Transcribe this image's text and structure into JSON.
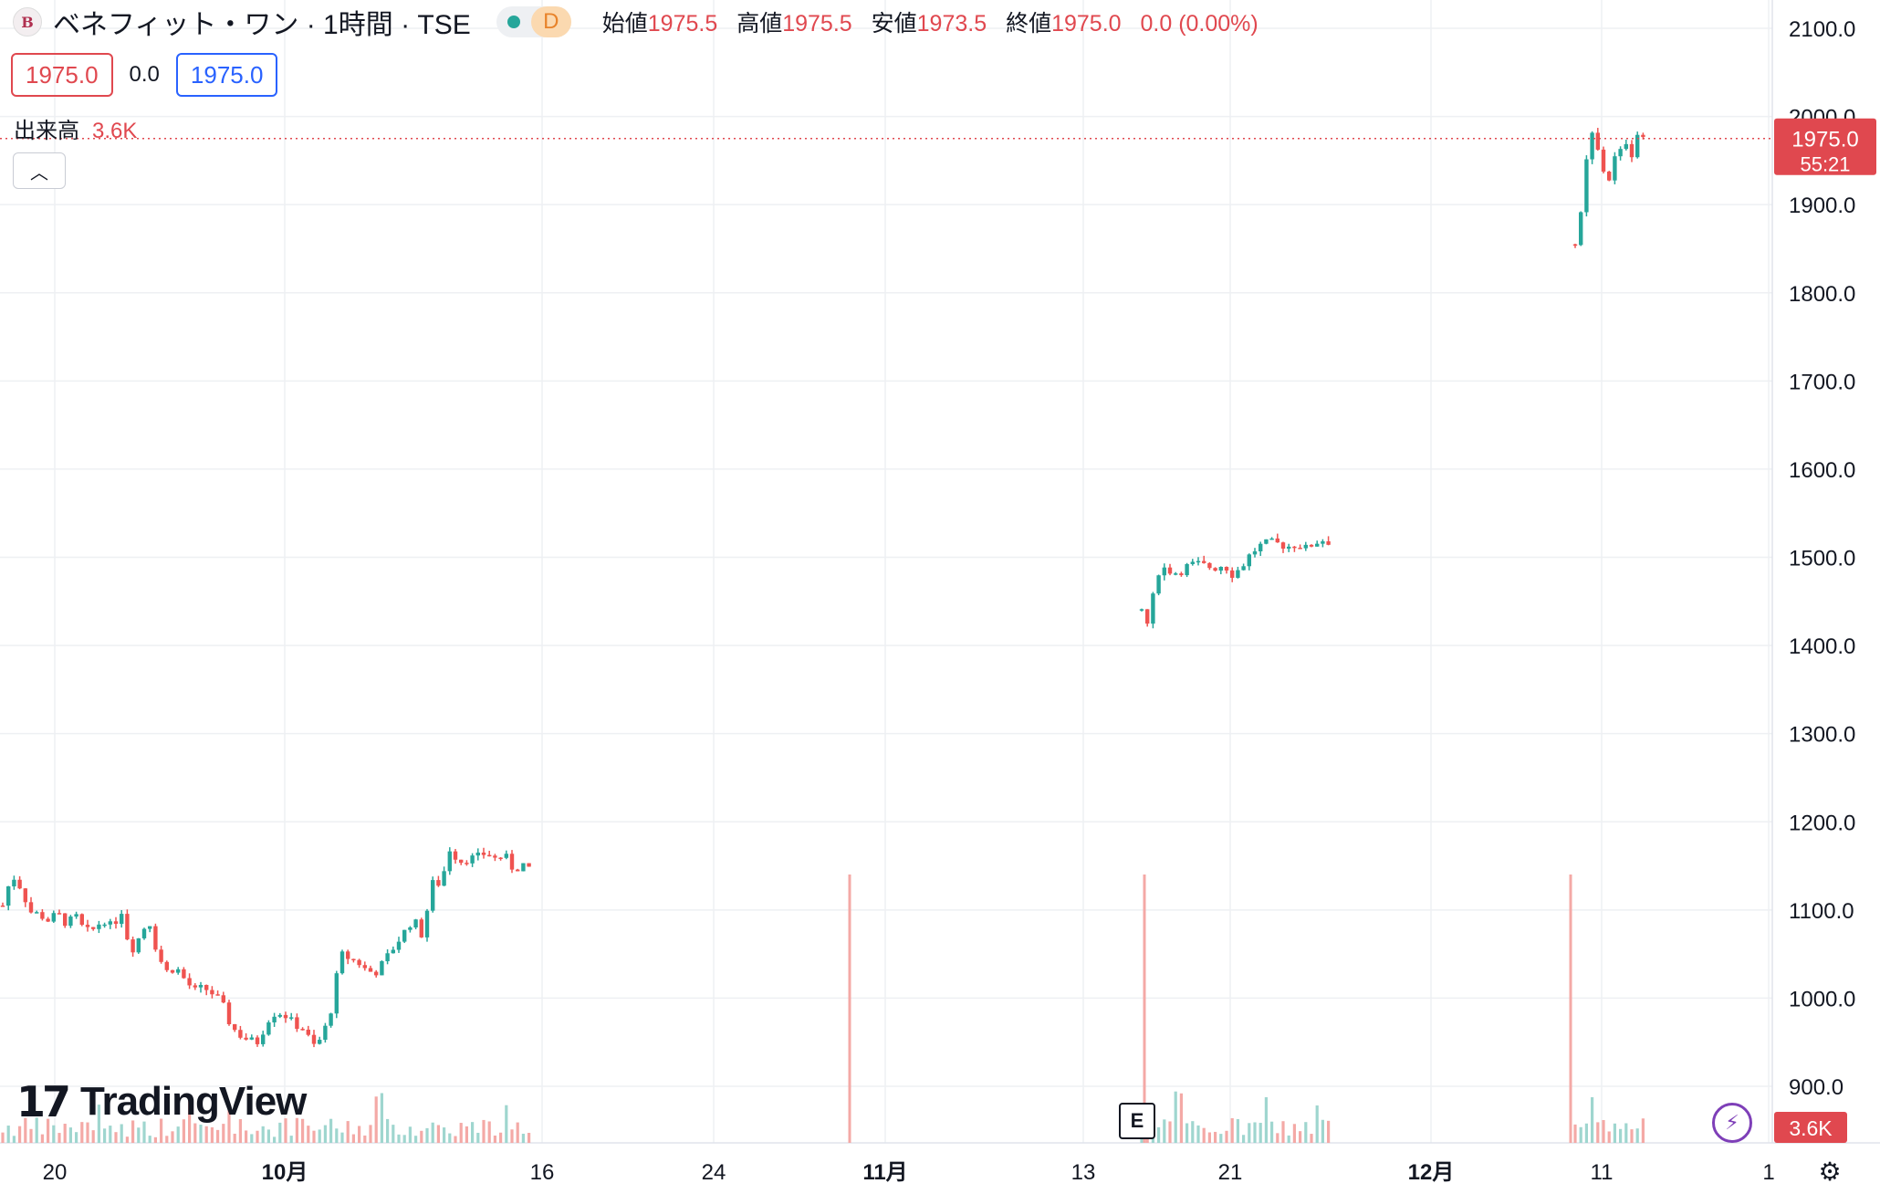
{
  "header": {
    "symbol_title": "ベネフィット・ワン · 1時間 · TSE",
    "market_badge": "D",
    "ohlc": {
      "open_label": "始値",
      "open": "1975.5",
      "high_label": "高値",
      "high": "1975.5",
      "low_label": "安値",
      "low": "1973.5",
      "close_label": "終値",
      "close": "1975.0",
      "change": "0.0 (0.00%)"
    }
  },
  "trade": {
    "sell_price": "1975.0",
    "spread": "0.0",
    "buy_price": "1975.0"
  },
  "volume_legend": {
    "label": "出来高",
    "value": "3.6K"
  },
  "price_tag": {
    "price": "1975.0",
    "countdown": "55:21"
  },
  "volume_tag": "3.6K",
  "earnings_badge": "E",
  "brand": "TradingView",
  "icons": {
    "collapse": "chevron-up-icon",
    "bolt": "lightning-icon",
    "settings": "settings-icon"
  },
  "colors": {
    "up": "#26a69a",
    "down": "#ef5350",
    "grid": "#eef0f3",
    "accent": "#e0484f"
  },
  "chart_data": {
    "type": "candlestick",
    "y_ticks": [
      "2100.0",
      "2000.0",
      "1900.0",
      "1800.0",
      "1700.0",
      "1600.0",
      "1500.0",
      "1400.0",
      "1300.0",
      "1200.0",
      "1100.0",
      "1000.0",
      "900.0"
    ],
    "ylim": [
      860,
      2130
    ],
    "x_ticks": [
      "20",
      "10月",
      "16",
      "24",
      "11月",
      "13",
      "21",
      "12月",
      "11",
      "1"
    ],
    "last_price": 1975.0,
    "series": [
      {
        "name": "price",
        "segments": [
          {
            "from_date": "20",
            "points": [
              [
                0,
                1105
              ],
              [
                10,
                1140
              ],
              [
                20,
                1125
              ],
              [
                30,
                1098
              ],
              [
                40,
                1095
              ],
              [
                50,
                1088
              ],
              [
                60,
                1096
              ],
              [
                70,
                1084
              ],
              [
                80,
                1093
              ],
              [
                90,
                1075
              ],
              [
                100,
                1078
              ],
              [
                110,
                1090
              ],
              [
                120,
                1080
              ],
              [
                130,
                1100
              ],
              [
                140,
                1052
              ],
              [
                150,
                1070
              ],
              [
                160,
                1090
              ],
              [
                170,
                1048
              ],
              [
                180,
                1030
              ],
              [
                190,
                1035
              ],
              [
                200,
                1020
              ],
              [
                210,
                1008
              ],
              [
                220,
                1012
              ],
              [
                230,
                1005
              ],
              [
                240,
                995
              ],
              [
                250,
                968
              ],
              [
                260,
                958
              ],
              [
                270,
                952
              ],
              [
                280,
                950
              ],
              [
                290,
                975
              ],
              [
                300,
                985
              ],
              [
                310,
                980
              ],
              [
                320,
                970
              ],
              [
                330,
                965
              ],
              [
                340,
                945
              ],
              [
                350,
                955
              ],
              [
                360,
                988
              ],
              [
                370,
                1050
              ],
              [
                380,
                1045
              ],
              [
                390,
                1040
              ],
              [
                400,
                1030
              ],
              [
                410,
                1030
              ],
              [
                420,
                1045
              ],
              [
                430,
                1060
              ],
              [
                440,
                1075
              ],
              [
                450,
                1090
              ],
              [
                460,
                1070
              ],
              [
                470,
                1130
              ],
              [
                480,
                1130
              ],
              [
                490,
                1170
              ],
              [
                500,
                1155
              ],
              [
                510,
                1158
              ],
              [
                520,
                1160
              ],
              [
                530,
                1165
              ],
              [
                540,
                1158
              ],
              [
                550,
                1162
              ],
              [
                560,
                1145
              ],
              [
                570,
                1152
              ],
              [
                580,
                1140
              ]
            ]
          },
          {
            "from_date": "13",
            "points": [
              [
                0,
                1440
              ],
              [
                5,
                1420
              ],
              [
                10,
                1440
              ],
              [
                15,
                1470
              ],
              [
                20,
                1490
              ],
              [
                30,
                1485
              ],
              [
                40,
                1482
              ],
              [
                50,
                1490
              ],
              [
                60,
                1493
              ],
              [
                70,
                1490
              ],
              [
                80,
                1488
              ],
              [
                90,
                1492
              ],
              [
                100,
                1480
              ],
              [
                110,
                1490
              ],
              [
                120,
                1505
              ],
              [
                130,
                1513
              ],
              [
                140,
                1517
              ],
              [
                150,
                1515
              ],
              [
                160,
                1512
              ],
              [
                170,
                1515
              ],
              [
                180,
                1510
              ],
              [
                190,
                1517
              ],
              [
                200,
                1520
              ],
              [
                210,
                1515
              ]
            ]
          },
          {
            "from_date": "11",
            "points": [
              [
                0,
                1855
              ],
              [
                5,
                1880
              ],
              [
                10,
                1910
              ],
              [
                15,
                1990
              ],
              [
                20,
                1975
              ],
              [
                25,
                1960
              ],
              [
                30,
                1945
              ],
              [
                35,
                1915
              ],
              [
                40,
                1948
              ],
              [
                45,
                1955
              ],
              [
                50,
                1960
              ],
              [
                55,
                1975
              ],
              [
                60,
                1955
              ],
              [
                65,
                1962
              ],
              [
                70,
                1990
              ],
              [
                75,
                1975
              ]
            ]
          }
        ]
      },
      {
        "name": "volume",
        "spikes": [
          {
            "date": "11月",
            "value": "peak"
          },
          {
            "date": "13",
            "value": "peak"
          },
          {
            "date": "11",
            "value": "peak"
          }
        ]
      }
    ],
    "grid": true
  }
}
